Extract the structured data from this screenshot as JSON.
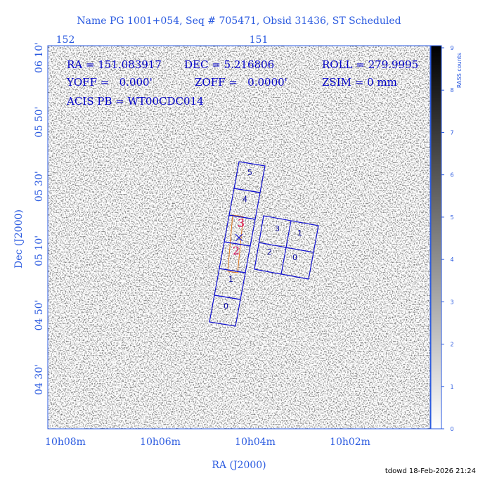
{
  "header": {
    "title": "Name PG 1001+054, Seq # 705471, Obsid 31436, ST Scheduled"
  },
  "axes": {
    "top_ticks": [
      "152",
      "151"
    ],
    "x_ticks": [
      "10h08m",
      "10h06m",
      "10h04m",
      "10h02m"
    ],
    "y_ticks": [
      "06 10'",
      "05 50'",
      "05 30'",
      "05 10'",
      "04 50'",
      "04 30'"
    ],
    "x_label": "RA (J2000)",
    "y_label": "Dec (J2000)"
  },
  "info": {
    "ra": "RA = 151.083917",
    "dec": "DEC = 5.216806",
    "roll": "ROLL = 279.9995",
    "yoff": "YOFF =   0.000'",
    "zoff": "ZOFF =   0.0000'",
    "zsim": "ZSIM = 0 mm",
    "acis": "ACIS PB = WT00CDC014"
  },
  "colorbar": {
    "label": "RASS counts",
    "ticks": [
      0,
      1,
      2,
      3,
      4,
      5,
      6,
      7,
      8,
      9
    ]
  },
  "acis_s_labels": [
    "5",
    "4",
    "1",
    "0"
  ],
  "acis_i_labels": [
    "3",
    "1",
    "2",
    "0"
  ],
  "hrc_labels": [
    "3",
    "2"
  ],
  "footer": "tdowd 18-Feb-2026 21:24"
}
